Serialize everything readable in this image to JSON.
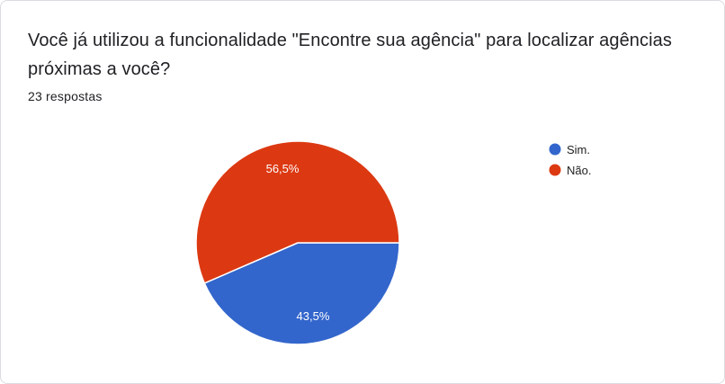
{
  "question": {
    "title": "Você já utilizou a funcionalidade \"Encontre sua agência\" para localizar agências próximas a você?",
    "responses_count": "23 respostas"
  },
  "chart_data": {
    "type": "pie",
    "title": "",
    "categories": [
      "Sim.",
      "Não."
    ],
    "values": [
      43.5,
      56.5
    ],
    "labels": [
      "43,5%",
      "56,5%"
    ],
    "colors": [
      "#3366cc",
      "#dc3912"
    ],
    "legend_position": "right",
    "start_angle_deg": 90,
    "direction": "clockwise"
  }
}
